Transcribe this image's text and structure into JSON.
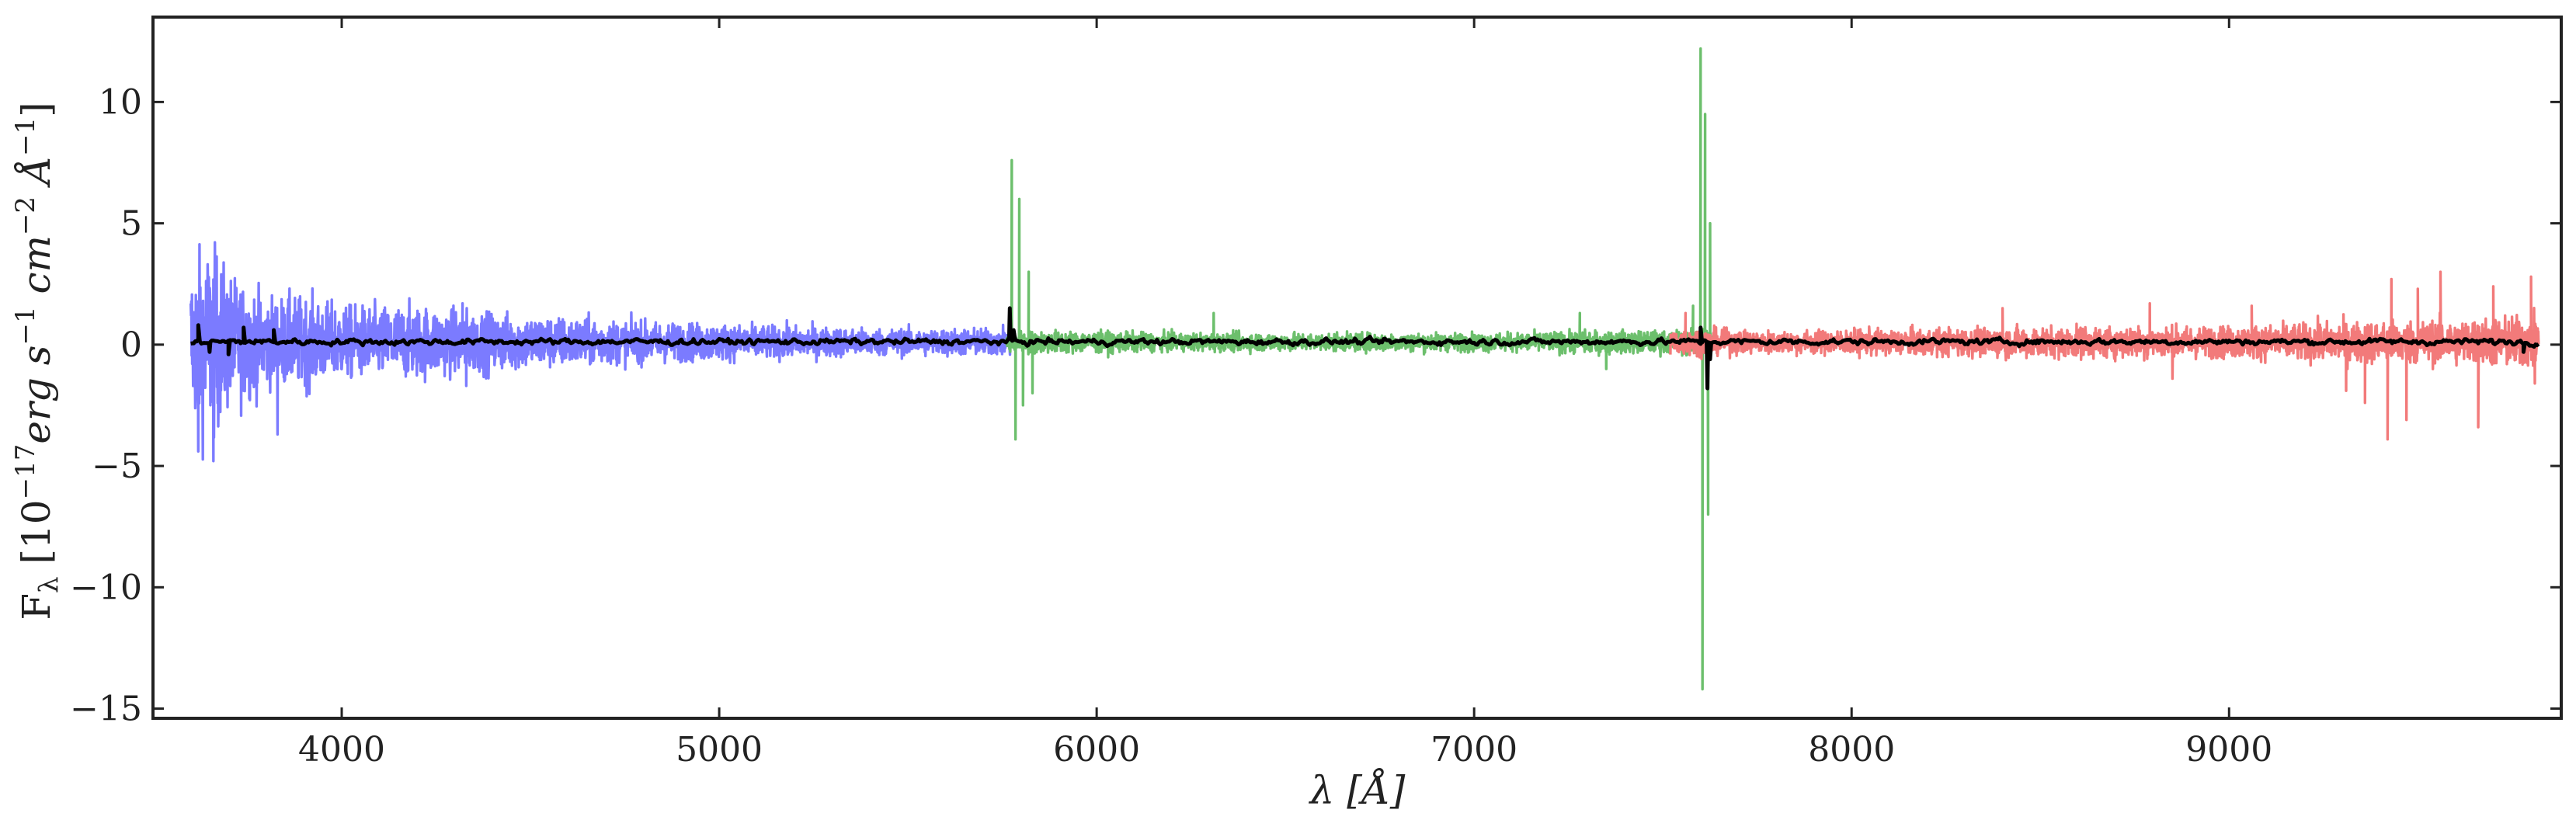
{
  "chart_data": {
    "type": "line",
    "xlabel": "λ [Å]",
    "ylabel": "F_λ [10^{-17} erg s^{-1} cm^{-2} Å^{-1}]",
    "ylabel_parts": {
      "symbol": "F",
      "symbol_sub": "λ",
      "open": " [10",
      "exp1": "−17",
      "erg": "erg s",
      "exp2": "−1",
      "cm": " cm",
      "exp3": "−2",
      "ang": " Å",
      "exp4": "−1",
      "close": "]"
    },
    "xlim": [
      3500,
      9880
    ],
    "ylim": [
      -15.4,
      13.5
    ],
    "xticks": [
      4000,
      5000,
      6000,
      7000,
      8000,
      9000
    ],
    "xtick_labels": [
      "4000",
      "5000",
      "6000",
      "7000",
      "8000",
      "9000"
    ],
    "yticks": [
      10,
      5,
      0,
      -5,
      -10,
      -15
    ],
    "ytick_labels": [
      "10",
      "5",
      "0",
      "−5",
      "−10",
      "−15"
    ],
    "grid": false,
    "colors": {
      "blue_arm": "#7b7bff",
      "green_arm": "#6cbf6c",
      "red_arm": "#f27a7a",
      "combined": "#000000"
    },
    "series": [
      {
        "color": "#7b7bff",
        "x_range": [
          3600,
          5780
        ],
        "envelope": [
          [
            3600,
            3.5
          ],
          [
            3650,
            4.4
          ],
          [
            3700,
            3.0
          ],
          [
            3800,
            2.0
          ],
          [
            3900,
            2.0
          ],
          [
            4000,
            1.6
          ],
          [
            4200,
            1.6
          ],
          [
            4400,
            1.3
          ],
          [
            4600,
            1.1
          ],
          [
            4800,
            0.9
          ],
          [
            5000,
            0.8
          ],
          [
            5200,
            0.7
          ],
          [
            5400,
            0.6
          ],
          [
            5600,
            0.6
          ],
          [
            5780,
            0.6
          ]
        ],
        "spikes": [
          [
            3620,
            -4.4
          ],
          [
            3660,
            -4.8
          ],
          [
            3830,
            -3.7
          ],
          [
            4320,
            1.7
          ],
          [
            4330,
            -1.7
          ]
        ]
      },
      {
        "color": "#6cbf6c",
        "x_range": [
          5760,
          7630
        ],
        "envelope": [
          [
            5760,
            0.5
          ],
          [
            5900,
            0.5
          ],
          [
            6200,
            0.4
          ],
          [
            6500,
            0.4
          ],
          [
            6800,
            0.4
          ],
          [
            7100,
            0.4
          ],
          [
            7300,
            0.5
          ],
          [
            7500,
            0.5
          ],
          [
            7630,
            0.6
          ]
        ],
        "spikes": [
          [
            5775,
            7.6
          ],
          [
            5785,
            -3.9
          ],
          [
            5795,
            6.0
          ],
          [
            5805,
            -2.5
          ],
          [
            5820,
            3.0
          ],
          [
            5830,
            -2.0
          ],
          [
            6310,
            1.3
          ],
          [
            7280,
            1.3
          ],
          [
            7350,
            -1.0
          ],
          [
            7580,
            1.6
          ],
          [
            7600,
            12.2
          ],
          [
            7605,
            -14.2
          ],
          [
            7612,
            9.5
          ],
          [
            7620,
            -7.0
          ],
          [
            7625,
            5.0
          ]
        ]
      },
      {
        "color": "#f27a7a",
        "x_range": [
          7520,
          9820
        ],
        "envelope": [
          [
            7520,
            0.6
          ],
          [
            7800,
            0.5
          ],
          [
            8200,
            0.6
          ],
          [
            8600,
            0.7
          ],
          [
            9000,
            0.7
          ],
          [
            9300,
            0.9
          ],
          [
            9600,
            1.0
          ],
          [
            9820,
            1.2
          ]
        ],
        "spikes": [
          [
            7560,
            1.3
          ],
          [
            8400,
            1.5
          ],
          [
            8790,
            1.7
          ],
          [
            8850,
            -1.4
          ],
          [
            9060,
            1.6
          ],
          [
            9310,
            -1.9
          ],
          [
            9360,
            -2.4
          ],
          [
            9420,
            -3.9
          ],
          [
            9430,
            2.7
          ],
          [
            9470,
            -3.1
          ],
          [
            9500,
            2.3
          ],
          [
            9560,
            3.0
          ],
          [
            9660,
            -3.4
          ],
          [
            9700,
            2.4
          ],
          [
            9800,
            2.8
          ],
          [
            9810,
            -1.6
          ]
        ]
      },
      {
        "color": "#000000",
        "x_range": [
          3600,
          9820
        ],
        "features": [
          [
            3620,
            0.8
          ],
          [
            3650,
            -0.3
          ],
          [
            3700,
            -0.4
          ],
          [
            3740,
            0.7
          ],
          [
            3770,
            0.1
          ],
          [
            3820,
            0.6
          ],
          [
            5770,
            1.5
          ],
          [
            5780,
            0.6
          ],
          [
            7600,
            0.7
          ],
          [
            7618,
            -1.8
          ],
          [
            7625,
            -0.6
          ],
          [
            9780,
            -0.3
          ]
        ]
      }
    ]
  }
}
